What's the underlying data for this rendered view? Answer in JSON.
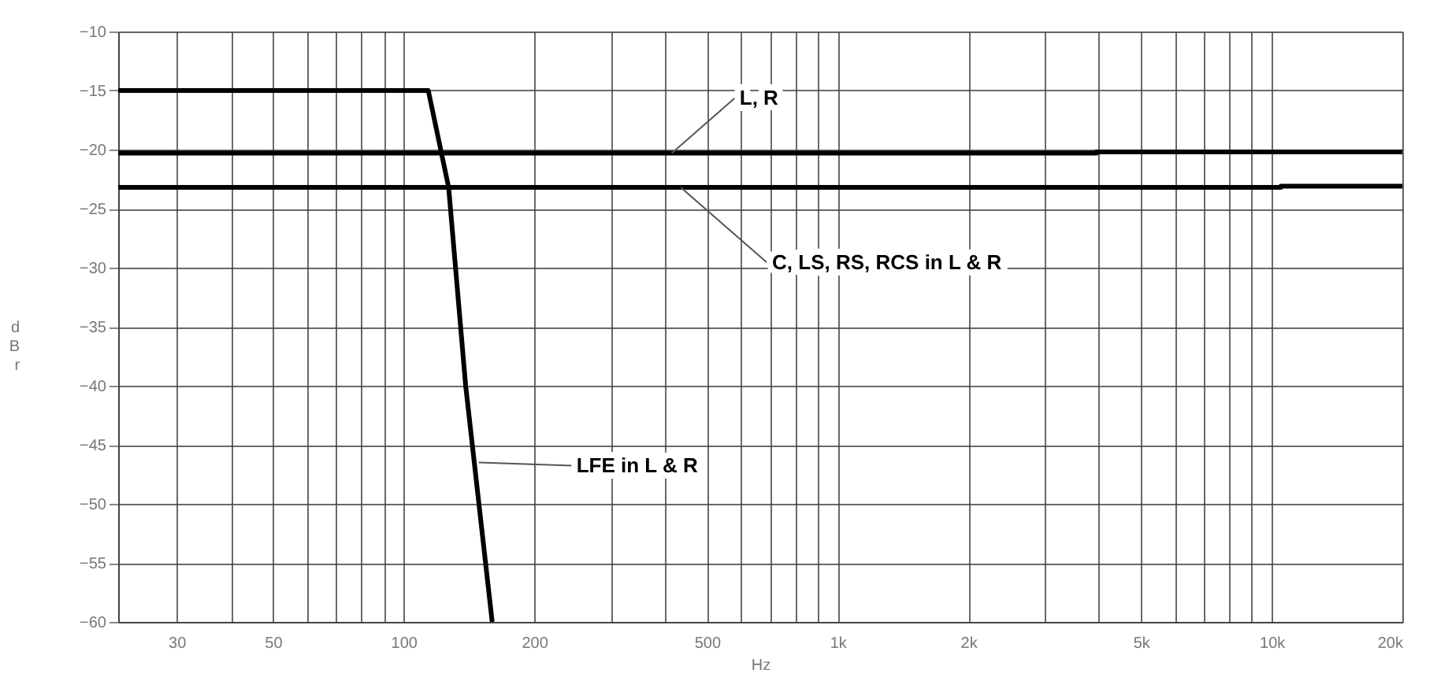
{
  "chart_data": {
    "type": "line",
    "xlabel": "Hz",
    "ylabel": "dBr",
    "log": "x",
    "grid": true,
    "marker": "none",
    "line_style": "solid",
    "xlim": [
      22,
      20000
    ],
    "ylim": [
      -60,
      -10
    ],
    "xticks": [
      30,
      {
        "value": 40,
        "label": null
      },
      50,
      {
        "value": 60,
        "label": null
      },
      {
        "value": 70,
        "label": null
      },
      {
        "value": 80,
        "label": null
      },
      {
        "value": 90,
        "label": null
      },
      100,
      200,
      {
        "value": 300,
        "label": null
      },
      {
        "value": 400,
        "label": null
      },
      500,
      {
        "value": 600,
        "label": null
      },
      {
        "value": 700,
        "label": null
      },
      {
        "value": 800,
        "label": null
      },
      {
        "value": 900,
        "label": null
      },
      {
        "value": 1000,
        "label": "1k"
      },
      {
        "value": 2000,
        "label": "2k"
      },
      {
        "value": 3000,
        "label": null
      },
      {
        "value": 4000,
        "label": null
      },
      {
        "value": 5000,
        "label": "5k"
      },
      {
        "value": 6000,
        "label": null
      },
      {
        "value": 7000,
        "label": null
      },
      {
        "value": 8000,
        "label": null
      },
      {
        "value": 9000,
        "label": null
      },
      {
        "value": 10000,
        "label": "10k"
      },
      {
        "value": 20000,
        "label": "20k"
      }
    ],
    "yticks": [
      -10,
      -15,
      -20,
      -25,
      -30,
      -35,
      -40,
      -45,
      -50,
      -55,
      -60
    ],
    "series": [
      {
        "color": "#000000",
        "x": [
          22,
          3950,
          3950,
          20000
        ],
        "values": [
          -20.3,
          -20.3,
          -20.2,
          -20.2
        ]
      },
      {
        "color": "#000000",
        "x": [
          22,
          10500,
          10500,
          20000
        ],
        "values": [
          -23.2,
          -23.2,
          -23.1,
          -23.1
        ]
      },
      {
        "color": "#000000",
        "x": [
          22,
          114,
          127,
          139,
          160
        ],
        "values": [
          -15,
          -15,
          -23.2,
          -40,
          -60
        ]
      }
    ],
    "annotations": [
      {
        "text": "L, R",
        "x": 415,
        "y": -20.3
      },
      {
        "text": "C, LS, RS, RCS in L & R",
        "x": 435,
        "y": -23.2
      },
      {
        "text": "LFE in L & R",
        "x": 149,
        "y": -46.5
      }
    ]
  }
}
